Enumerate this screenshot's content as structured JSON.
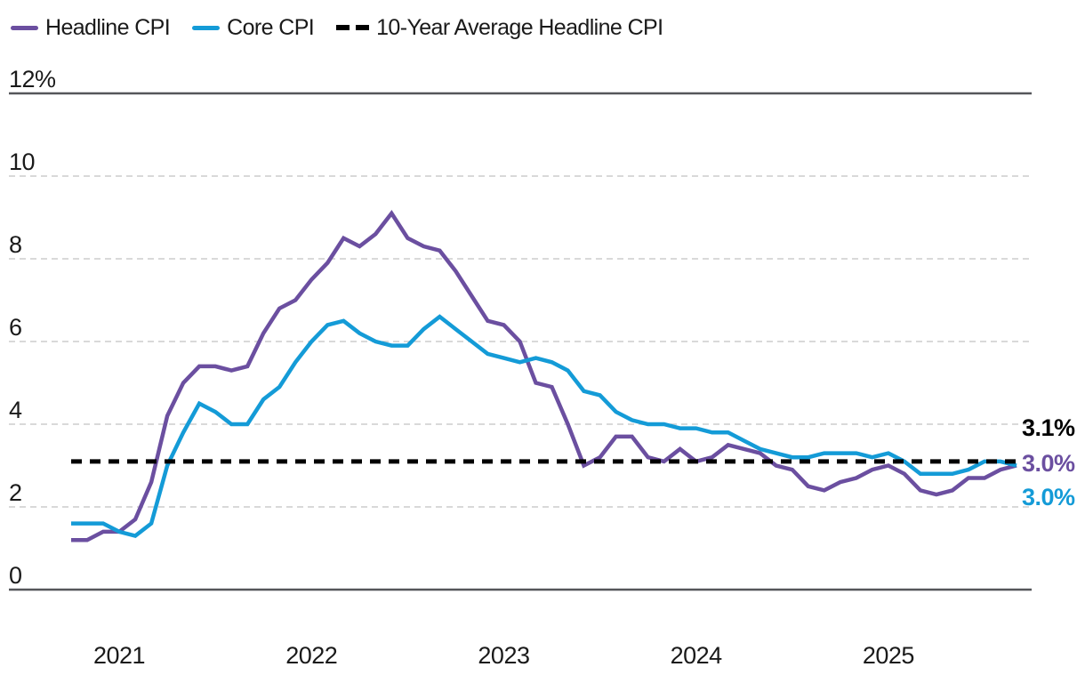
{
  "legend": {
    "items": [
      {
        "label": "Headline CPI",
        "color": "#6b4fa0",
        "style": "solid"
      },
      {
        "label": "Core CPI",
        "color": "#149bd7",
        "style": "solid"
      },
      {
        "label": "10-Year Average Headline CPI",
        "color": "#000000",
        "style": "dashed"
      }
    ]
  },
  "chart_data": {
    "type": "line",
    "title": "",
    "xlabel": "",
    "ylabel": "",
    "ylim": [
      0,
      12
    ],
    "grid": "horizontal-dashed",
    "legend_position": "top-left",
    "yticks": [
      {
        "value": 0,
        "label": "0"
      },
      {
        "value": 2,
        "label": "2"
      },
      {
        "value": 4,
        "label": "4"
      },
      {
        "value": 6,
        "label": "6"
      },
      {
        "value": 8,
        "label": "8"
      },
      {
        "value": 10,
        "label": "10"
      },
      {
        "value": 12,
        "label": "12%"
      }
    ],
    "xtick_labels": [
      "2021",
      "2022",
      "2023",
      "2024",
      "2025"
    ],
    "months": [
      "2020-10",
      "2020-11",
      "2020-12",
      "2021-01",
      "2021-02",
      "2021-03",
      "2021-04",
      "2021-05",
      "2021-06",
      "2021-07",
      "2021-08",
      "2021-09",
      "2021-10",
      "2021-11",
      "2021-12",
      "2022-01",
      "2022-02",
      "2022-03",
      "2022-04",
      "2022-05",
      "2022-06",
      "2022-07",
      "2022-08",
      "2022-09",
      "2022-10",
      "2022-11",
      "2022-12",
      "2023-01",
      "2023-02",
      "2023-03",
      "2023-04",
      "2023-05",
      "2023-06",
      "2023-07",
      "2023-08",
      "2023-09",
      "2023-10",
      "2023-11",
      "2023-12",
      "2024-01",
      "2024-02",
      "2024-03",
      "2024-04",
      "2024-05",
      "2024-06",
      "2024-07",
      "2024-08",
      "2024-09",
      "2024-10",
      "2024-11",
      "2024-12",
      "2025-01",
      "2025-02",
      "2025-03",
      "2025-04",
      "2025-05",
      "2025-06",
      "2025-07",
      "2025-08",
      "2025-09"
    ],
    "series": [
      {
        "name": "Headline CPI",
        "color": "#6b4fa0",
        "style": "solid",
        "latest_label": "3.0%",
        "values": [
          1.2,
          1.2,
          1.4,
          1.4,
          1.7,
          2.6,
          4.2,
          5.0,
          5.4,
          5.4,
          5.3,
          5.4,
          6.2,
          6.8,
          7.0,
          7.5,
          7.9,
          8.5,
          8.3,
          8.6,
          9.1,
          8.5,
          8.3,
          8.2,
          7.7,
          7.1,
          6.5,
          6.4,
          6.0,
          5.0,
          4.9,
          4.0,
          3.0,
          3.2,
          3.7,
          3.7,
          3.2,
          3.1,
          3.4,
          3.1,
          3.2,
          3.5,
          3.4,
          3.3,
          3.0,
          2.9,
          2.5,
          2.4,
          2.6,
          2.7,
          2.9,
          3.0,
          2.8,
          2.4,
          2.3,
          2.4,
          2.7,
          2.7,
          2.9,
          3.0
        ]
      },
      {
        "name": "Core CPI",
        "color": "#149bd7",
        "style": "solid",
        "latest_label": "3.0%",
        "values": [
          1.6,
          1.6,
          1.6,
          1.4,
          1.3,
          1.6,
          3.0,
          3.8,
          4.5,
          4.3,
          4.0,
          4.0,
          4.6,
          4.9,
          5.5,
          6.0,
          6.4,
          6.5,
          6.2,
          6.0,
          5.9,
          5.9,
          6.3,
          6.6,
          6.3,
          6.0,
          5.7,
          5.6,
          5.5,
          5.6,
          5.5,
          5.3,
          4.8,
          4.7,
          4.3,
          4.1,
          4.0,
          4.0,
          3.9,
          3.9,
          3.8,
          3.8,
          3.6,
          3.4,
          3.3,
          3.2,
          3.2,
          3.3,
          3.3,
          3.3,
          3.2,
          3.3,
          3.1,
          2.8,
          2.8,
          2.8,
          2.9,
          3.1,
          3.1,
          3.0
        ]
      }
    ],
    "reference_line": {
      "name": "10-Year Average Headline CPI",
      "color": "#000000",
      "style": "dashed",
      "value": 3.1,
      "latest_label": "3.1%"
    },
    "end_labels": [
      {
        "text": "3.1%",
        "color": "#000000"
      },
      {
        "text": "3.0%",
        "color": "#6b4fa0"
      },
      {
        "text": "3.0%",
        "color": "#149bd7"
      }
    ],
    "colors": {
      "grid_dashed": "#d9d9d9",
      "axis_solid": "#55565a",
      "text": "#1a1a1a",
      "background": "#ffffff"
    }
  }
}
